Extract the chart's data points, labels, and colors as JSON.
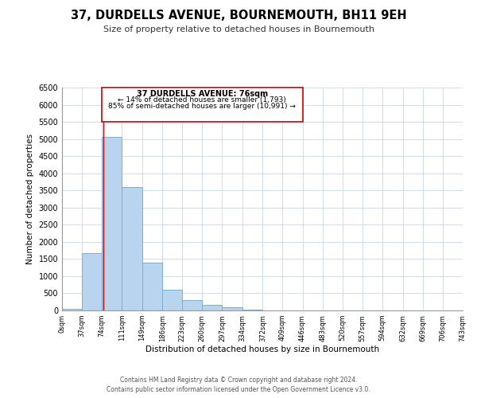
{
  "title": "37, DURDELLS AVENUE, BOURNEMOUTH, BH11 9EH",
  "subtitle": "Size of property relative to detached houses in Bournemouth",
  "xlabel": "Distribution of detached houses by size in Bournemouth",
  "ylabel": "Number of detached properties",
  "bar_color": "#b8d4ee",
  "bar_edge_color": "#7aafd4",
  "marker_line_color": "#cc0000",
  "bin_edges": [
    0,
    37,
    74,
    111,
    149,
    186,
    223,
    260,
    297,
    334,
    372,
    409,
    446,
    483,
    520,
    557,
    594,
    632,
    669,
    706,
    743
  ],
  "bin_labels": [
    "0sqm",
    "37sqm",
    "74sqm",
    "111sqm",
    "149sqm",
    "186sqm",
    "223sqm",
    "260sqm",
    "297sqm",
    "334sqm",
    "372sqm",
    "409sqm",
    "446sqm",
    "483sqm",
    "520sqm",
    "557sqm",
    "594sqm",
    "632sqm",
    "669sqm",
    "706sqm",
    "743sqm"
  ],
  "counts": [
    55,
    1660,
    5050,
    3600,
    1400,
    615,
    305,
    155,
    90,
    20,
    0,
    5,
    0,
    0,
    0,
    0,
    0,
    0,
    0,
    0
  ],
  "ylim": [
    0,
    6500
  ],
  "yticks": [
    0,
    500,
    1000,
    1500,
    2000,
    2500,
    3000,
    3500,
    4000,
    4500,
    5000,
    5500,
    6000,
    6500
  ],
  "property_size": 76,
  "annotation_title": "37 DURDELLS AVENUE: 76sqm",
  "annotation_line1": "← 14% of detached houses are smaller (1,793)",
  "annotation_line2": "85% of semi-detached houses are larger (10,991) →",
  "footer_line1": "Contains HM Land Registry data © Crown copyright and database right 2024.",
  "footer_line2": "Contains public sector information licensed under the Open Government Licence v3.0.",
  "background_color": "#ffffff",
  "grid_color": "#c8d8e8"
}
